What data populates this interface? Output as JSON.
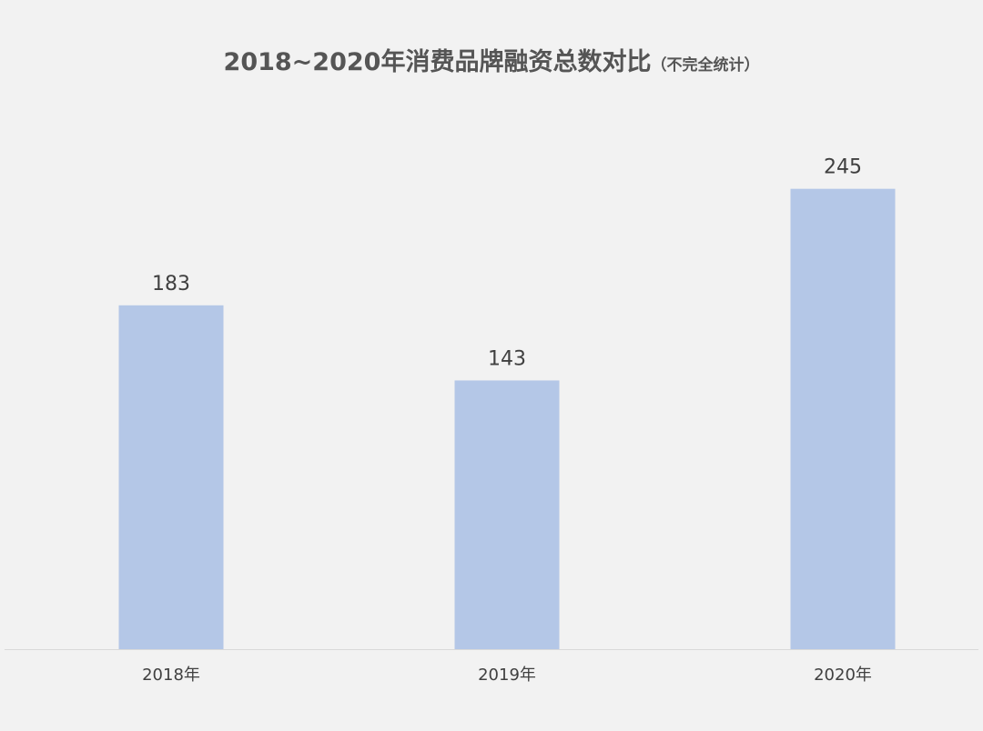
{
  "chart_data": {
    "type": "bar",
    "title": "2018~2020年消费品牌融资总数对比",
    "subtitle": "（不完全统计）",
    "categories": [
      "2018年",
      "2019年",
      "2020年"
    ],
    "values": [
      183,
      143,
      245
    ],
    "xlabel": "",
    "ylabel": "",
    "ylim": [
      0,
      270
    ],
    "grid": false,
    "legend": "none",
    "bar_color": "#b4c7e7",
    "axis_color": "#d9d9d9",
    "text_color": "#404040",
    "title_color": "#555555",
    "background": "#f2f2f2"
  }
}
